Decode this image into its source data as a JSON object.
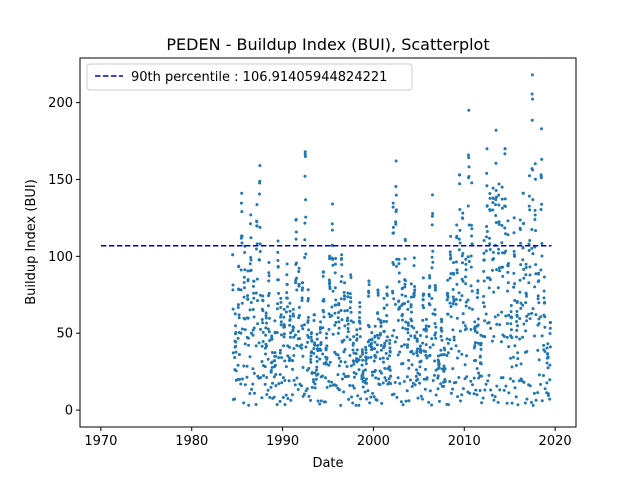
{
  "chart_data": {
    "type": "scatter",
    "title": "PEDEN - Buildup Index (BUI), Scatterplot",
    "xlabel": "Date",
    "ylabel": "Buildup Index (BUI)",
    "xlim": [
      1967.7,
      2022.3
    ],
    "ylim": [
      -11,
      229
    ],
    "xticks": [
      1970,
      1980,
      1990,
      2000,
      2010,
      2020
    ],
    "yticks": [
      0,
      50,
      100,
      150,
      200
    ],
    "grid": false,
    "legend": {
      "placement": "top-left",
      "entries": [
        {
          "label": "90th percentile : 106.91405944824221",
          "style": "dashed-line",
          "color": "#0000cc"
        }
      ]
    },
    "reference_line": {
      "name": "90th percentile",
      "y": 106.91405944824221,
      "x_range": [
        1970,
        2019.6
      ],
      "color": "#0000cc",
      "style": "dashed"
    },
    "marker_color": "#1f77b4",
    "data_range": [
      1984.5,
      2019.5
    ],
    "seasons": [
      {
        "year": 1984,
        "peak": 101
      },
      {
        "year": 1985,
        "peak": 141
      },
      {
        "year": 1986,
        "peak": 127
      },
      {
        "year": 1987,
        "peak": 159
      },
      {
        "year": 1988,
        "peak": 96
      },
      {
        "year": 1989,
        "peak": 110
      },
      {
        "year": 1990,
        "peak": 95
      },
      {
        "year": 1991,
        "peak": 124
      },
      {
        "year": 1992,
        "peak": 168
      },
      {
        "year": 1993,
        "peak": 62
      },
      {
        "year": 1994,
        "peak": 90
      },
      {
        "year": 1995,
        "peak": 134
      },
      {
        "year": 1996,
        "peak": 101
      },
      {
        "year": 1997,
        "peak": 88
      },
      {
        "year": 1998,
        "peak": 70
      },
      {
        "year": 1999,
        "peak": 84
      },
      {
        "year": 2000,
        "peak": 78
      },
      {
        "year": 2001,
        "peak": 80
      },
      {
        "year": 2002,
        "peak": 162
      },
      {
        "year": 2003,
        "peak": 111
      },
      {
        "year": 2004,
        "peak": 99
      },
      {
        "year": 2005,
        "peak": 86
      },
      {
        "year": 2006,
        "peak": 140
      },
      {
        "year": 2007,
        "peak": 59
      },
      {
        "year": 2008,
        "peak": 113
      },
      {
        "year": 2009,
        "peak": 153
      },
      {
        "year": 2010,
        "peak": 195
      },
      {
        "year": 2011,
        "peak": 84
      },
      {
        "year": 2012,
        "peak": 170
      },
      {
        "year": 2013,
        "peak": 182
      },
      {
        "year": 2014,
        "peak": 170
      },
      {
        "year": 2015,
        "peak": 125
      },
      {
        "year": 2016,
        "peak": 141
      },
      {
        "year": 2017,
        "peak": 218
      },
      {
        "year": 2018,
        "peak": 183
      },
      {
        "year": 2019,
        "peak": 57
      }
    ]
  }
}
